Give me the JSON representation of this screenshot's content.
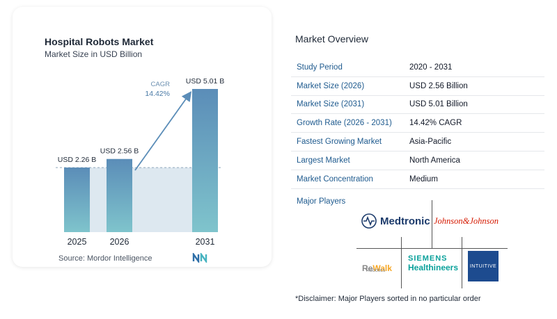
{
  "chart_data": {
    "type": "bar",
    "title": "Hospital Robots Market",
    "subtitle": "Market Size in USD Billion",
    "categories": [
      "2025",
      "2026",
      "2031"
    ],
    "values": [
      2.26,
      2.56,
      5.01
    ],
    "data_labels": [
      "USD 2.26 B",
      "USD 2.56 B",
      "USD 5.01 B"
    ],
    "cagr_label": "CAGR",
    "cagr_value": "14.42%",
    "colors": {
      "bar_top": "#5b8db8",
      "bar_bottom": "#7fc4cc",
      "reference_band": "#dde8f0",
      "arrow": "#5b8db8"
    },
    "ylim": [
      0,
      5.01
    ],
    "grid": false
  },
  "source": "Source: Mordor Intelligence",
  "overview": {
    "title": "Market Overview",
    "rows": [
      {
        "key": "Study Period",
        "value": "2020 - 2031"
      },
      {
        "key": "Market Size (2026)",
        "value": "USD 2.56 Billion"
      },
      {
        "key": "Market Size (2031)",
        "value": "USD 5.01 Billion"
      },
      {
        "key": "Growth Rate (2026 - 2031)",
        "value": "14.42% CAGR"
      },
      {
        "key": "Fastest Growing Market",
        "value": "Asia-Pacific"
      },
      {
        "key": "Largest Market",
        "value": "North America"
      },
      {
        "key": "Market Concentration",
        "value": "Medium"
      }
    ]
  },
  "players": {
    "title": "Major Players",
    "medtronic": "Medtronic",
    "jnj": "Johnson&Johnson",
    "rewalk_a": "Re",
    "rewalk_b": "Walk",
    "rewalk_sub": "Robotics",
    "siemens_a": "SIEMENS",
    "siemens_b": "Healthineers",
    "intuitive": "INTUITIVE"
  },
  "disclaimer": "*Disclaimer: Major Players sorted in no particular order"
}
